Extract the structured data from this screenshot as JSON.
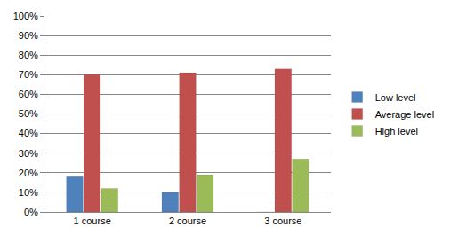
{
  "chart_data": {
    "type": "bar",
    "categories": [
      "1 course",
      "2 course",
      "3 course"
    ],
    "series": [
      {
        "name": "Low level",
        "color": "#4f81bd",
        "values": [
          18,
          10,
          0
        ]
      },
      {
        "name": "Average level",
        "color": "#c0504d",
        "values": [
          70,
          71,
          73
        ]
      },
      {
        "name": "High level",
        "color": "#9bbb59",
        "values": [
          12,
          19,
          27
        ]
      }
    ],
    "ylim": [
      0,
      100
    ],
    "yticks": [
      {
        "value": 0,
        "label": "0%"
      },
      {
        "value": 10,
        "label": "10%"
      },
      {
        "value": 20,
        "label": "20%"
      },
      {
        "value": 30,
        "label": "30%"
      },
      {
        "value": 40,
        "label": "40%"
      },
      {
        "value": 50,
        "label": "50%"
      },
      {
        "value": 60,
        "label": "60%"
      },
      {
        "value": 70,
        "label": "70%"
      },
      {
        "value": 80,
        "label": "80%"
      },
      {
        "value": 90,
        "label": "90%"
      },
      {
        "value": 100,
        "label": "100%"
      }
    ],
    "grid": true,
    "legend": "right"
  }
}
